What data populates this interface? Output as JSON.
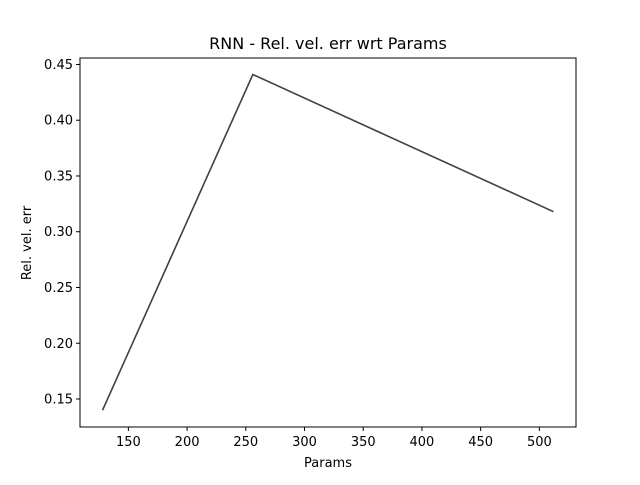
{
  "chart_data": {
    "type": "line",
    "title": "RNN - Rel. vel. err wrt Params",
    "xlabel": "Params",
    "ylabel": "Rel. vel. err",
    "xlim": [
      108.8,
      531.2
    ],
    "ylim": [
      0.1249,
      0.4558
    ],
    "xticks": [
      150,
      200,
      250,
      300,
      350,
      400,
      450,
      500
    ],
    "yticks": [
      0.15,
      0.2,
      0.25,
      0.3,
      0.35,
      0.4,
      0.45
    ],
    "xtick_labels": [
      "150",
      "200",
      "250",
      "300",
      "350",
      "400",
      "450",
      "500"
    ],
    "ytick_labels": [
      "0.15",
      "0.20",
      "0.25",
      "0.30",
      "0.35",
      "0.40",
      "0.45"
    ],
    "grid": false,
    "series": [
      {
        "x": [
          128,
          256,
          512
        ],
        "values": [
          0.14,
          0.441,
          0.318
        ],
        "color": "#404040"
      }
    ]
  }
}
